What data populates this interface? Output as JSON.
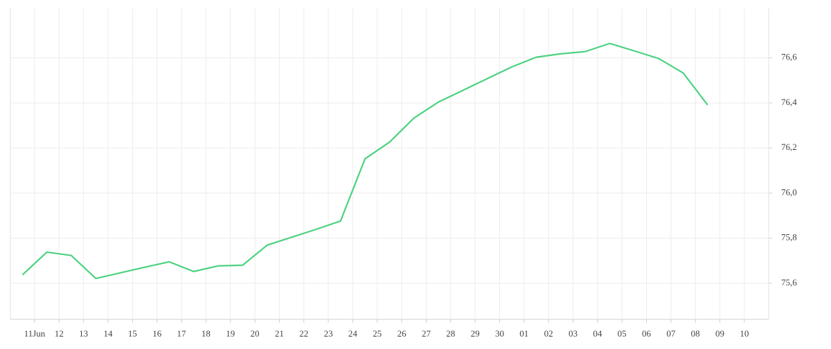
{
  "chart_data": {
    "type": "line",
    "categories": [
      "11Jun",
      "12",
      "13",
      "14",
      "15",
      "16",
      "17",
      "18",
      "19",
      "20",
      "21",
      "22",
      "23",
      "24",
      "25",
      "26",
      "27",
      "28",
      "29",
      "30",
      "01",
      "02",
      "03",
      "04",
      "05",
      "06",
      "07",
      "08",
      "09",
      "10"
    ],
    "series": [
      {
        "name": null,
        "color": "#4cd27f",
        "values": [
          75.637,
          75.738,
          75.723,
          75.621,
          75.646,
          75.671,
          75.695,
          75.652,
          75.677,
          75.68,
          75.769,
          75.804,
          75.839,
          75.876,
          76.152,
          76.226,
          76.333,
          76.404,
          76.456,
          76.508,
          76.56,
          76.603,
          76.618,
          76.628,
          76.664,
          76.631,
          76.597,
          76.533,
          76.391,
          null
        ]
      }
    ],
    "ylim": [
      75.44,
      76.82
    ],
    "yticks": [
      {
        "value": 75.6,
        "label": "75,6"
      },
      {
        "value": 75.8,
        "label": "75,8"
      },
      {
        "value": 76.0,
        "label": "76,0"
      },
      {
        "value": 76.2,
        "label": "76,2"
      },
      {
        "value": 76.4,
        "label": "76,4"
      },
      {
        "value": 76.6,
        "label": "76,6"
      }
    ],
    "grid": true
  }
}
